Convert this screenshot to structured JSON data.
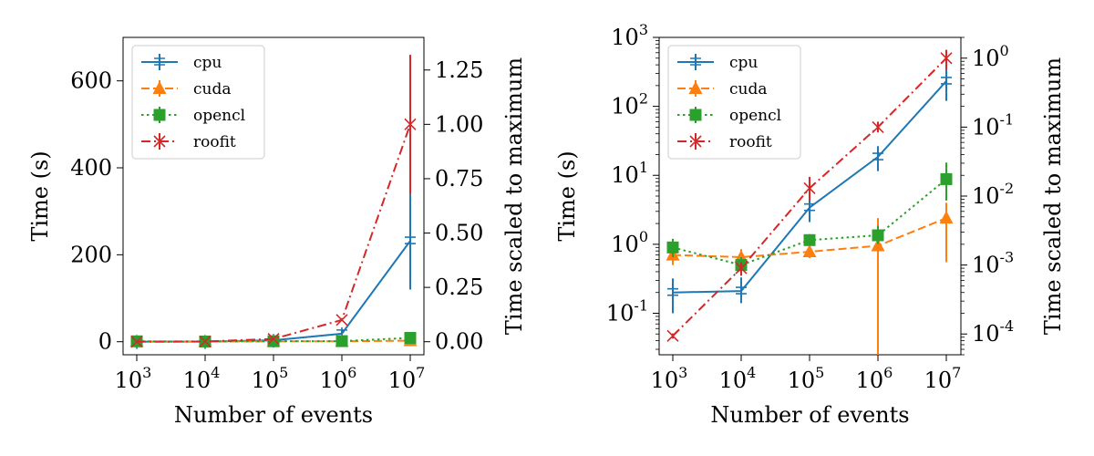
{
  "chart_data": [
    {
      "type": "line",
      "title": "",
      "yscale": "linear",
      "x_exponents": [
        3,
        4,
        5,
        6,
        7
      ],
      "x": [
        1000,
        10000,
        100000,
        1000000,
        10000000
      ],
      "xlabel": "Number of events",
      "ylabel": "Time (s)",
      "ylabel_right": "Time scaled to maximum",
      "ylim": [
        -30,
        700
      ],
      "yticks": [
        0,
        200,
        400,
        600
      ],
      "ylim_right": [
        -0.06,
        1.4
      ],
      "yticks_right": [
        "0.00",
        "0.25",
        "0.50",
        "0.75",
        "1.00",
        "1.25"
      ],
      "legend_position": "top-left",
      "series": [
        {
          "name": "cpu",
          "color": "#1f77b4",
          "linestyle": "solid",
          "marker": "tri-cross",
          "values": [
            0.2,
            0.21,
            3.4,
            18.5,
            232
          ],
          "err_low": [
            0,
            0,
            0,
            8,
            112
          ],
          "err_high": [
            0,
            0,
            0,
            8,
            108
          ]
        },
        {
          "name": "cuda",
          "color": "#ff7f0e",
          "linestyle": "dashed",
          "marker": "triangle",
          "values": [
            0.7,
            0.65,
            0.78,
            0.95,
            2.4
          ],
          "err_low": [
            0,
            0,
            0,
            0,
            0
          ],
          "err_high": [
            0,
            0,
            0,
            0,
            0
          ]
        },
        {
          "name": "opencl",
          "color": "#2ca02c",
          "linestyle": "dotted",
          "marker": "square",
          "values": [
            0.9,
            0.5,
            1.15,
            1.35,
            8.8
          ],
          "err_low": [
            0,
            0,
            0,
            0,
            0
          ],
          "err_high": [
            0,
            0,
            0,
            0,
            0
          ]
        },
        {
          "name": "roofit",
          "color": "#d62728",
          "linestyle": "dashdot",
          "marker": "x",
          "values": [
            0.047,
            0.45,
            6.5,
            50,
            500
          ],
          "err_low": [
            0,
            0,
            0,
            0,
            160
          ],
          "err_high": [
            0,
            0,
            0,
            0,
            160
          ]
        }
      ]
    },
    {
      "type": "line",
      "title": "",
      "yscale": "log",
      "x_exponents": [
        3,
        4,
        5,
        6,
        7
      ],
      "x": [
        1000,
        10000,
        100000,
        1000000,
        10000000
      ],
      "xlabel": "Number of events",
      "ylabel": "Time (s)",
      "ylabel_right": "Time scaled to maximum",
      "ylim": [
        0.025,
        1000
      ],
      "ytick_exponents": [
        -1,
        0,
        1,
        2,
        3
      ],
      "ylim_right": [
        5e-05,
        2
      ],
      "ytick_exponents_right": [
        -4,
        -3,
        -2,
        -1,
        0
      ],
      "legend_position": "top-left",
      "series": [
        {
          "name": "cpu",
          "color": "#1f77b4",
          "linestyle": "solid",
          "marker": "tri-cross",
          "values": [
            0.2,
            0.21,
            3.4,
            18.5,
            232
          ],
          "err_low": [
            0.1,
            0.07,
            1.3,
            7,
            112
          ],
          "err_high": [
            0.12,
            0.12,
            1.6,
            8,
            108
          ]
        },
        {
          "name": "cuda",
          "color": "#ff7f0e",
          "linestyle": "dashed",
          "marker": "triangle",
          "values": [
            0.7,
            0.65,
            0.78,
            0.95,
            2.4
          ],
          "err_low": [
            0.2,
            0.15,
            0.15,
            0.94,
            1.85
          ],
          "err_high": [
            0.25,
            0.2,
            0.15,
            1.45,
            1.6
          ]
        },
        {
          "name": "opencl",
          "color": "#2ca02c",
          "linestyle": "dotted",
          "marker": "square",
          "values": [
            0.9,
            0.5,
            1.15,
            1.35,
            8.8
          ],
          "err_low": [
            0.25,
            0.12,
            0.2,
            0.35,
            4.5
          ],
          "err_high": [
            0.3,
            0.15,
            0.25,
            0.5,
            6.5
          ]
        },
        {
          "name": "roofit",
          "color": "#d62728",
          "linestyle": "dashdot",
          "marker": "x",
          "values": [
            0.047,
            0.45,
            6.5,
            50,
            500
          ],
          "err_low": [
            0.004,
            0.1,
            2.2,
            8,
            160
          ],
          "err_high": [
            0.004,
            0.1,
            3,
            10,
            160
          ]
        }
      ]
    }
  ]
}
